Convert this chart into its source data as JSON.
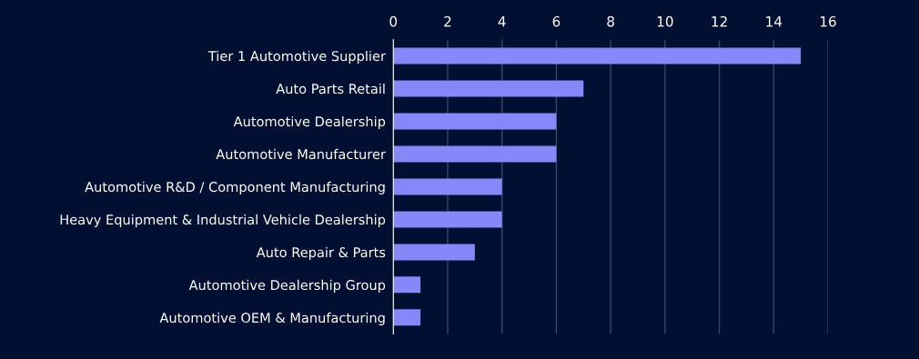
{
  "chart_data": {
    "type": "bar",
    "orientation": "horizontal",
    "categories": [
      "Tier 1 Automotive Supplier",
      "Auto Parts Retail",
      "Automotive Dealership",
      "Automotive Manufacturer",
      "Automotive R&D / Component Manufacturing",
      "Heavy Equipment & Industrial Vehicle Dealership",
      "Auto Repair & Parts",
      "Automotive Dealership Group",
      "Automotive OEM & Manufacturing"
    ],
    "values": [
      15,
      7,
      6,
      6,
      4,
      4,
      3,
      1,
      1
    ],
    "color": "#8488f9",
    "xlim": [
      0,
      16
    ],
    "xticks": [
      0,
      2,
      4,
      6,
      8,
      10,
      12,
      14,
      16
    ],
    "grid": "x"
  }
}
